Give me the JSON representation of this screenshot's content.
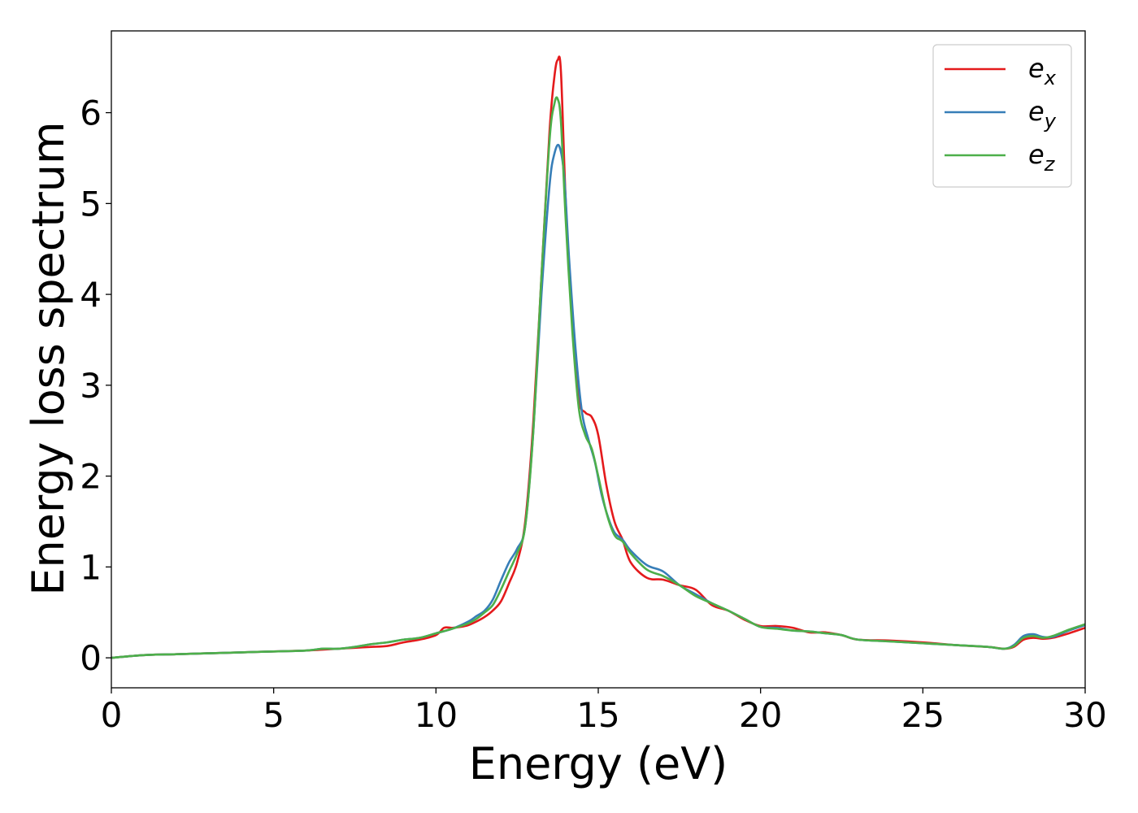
{
  "chart_data": {
    "type": "line",
    "title": "",
    "xlabel": "Energy (eV)",
    "ylabel": "Energy loss spectrum",
    "xlim": [
      0,
      30
    ],
    "ylim": [
      -0.33,
      6.9
    ],
    "xticks": [
      0,
      5,
      10,
      15,
      20,
      25,
      30
    ],
    "yticks": [
      0,
      1,
      2,
      3,
      4,
      5,
      6
    ],
    "grid": false,
    "legend_position": "top-right",
    "series": [
      {
        "name": "e",
        "subscript": "x",
        "color": "#e41a1c",
        "x": [
          0,
          1,
          2,
          3,
          4,
          5,
          6,
          6.5,
          7,
          7.5,
          8,
          8.5,
          9,
          9.5,
          10,
          10.25,
          10.5,
          10.75,
          11,
          11.25,
          11.5,
          11.75,
          12,
          12.25,
          12.5,
          12.75,
          13,
          13.25,
          13.5,
          13.65,
          13.75,
          13.85,
          14,
          14.2,
          14.4,
          14.6,
          14.8,
          15,
          15.25,
          15.5,
          15.75,
          16,
          16.5,
          17,
          17.5,
          18,
          18.5,
          19,
          19.5,
          20,
          20.5,
          21,
          21.5,
          22,
          22.5,
          23,
          24,
          25,
          26,
          27,
          27.5,
          27.8,
          28.1,
          28.4,
          28.7,
          29,
          29.5,
          30
        ],
        "y": [
          0,
          0.03,
          0.04,
          0.05,
          0.06,
          0.07,
          0.08,
          0.09,
          0.1,
          0.11,
          0.12,
          0.13,
          0.17,
          0.2,
          0.25,
          0.33,
          0.33,
          0.34,
          0.36,
          0.4,
          0.45,
          0.52,
          0.62,
          0.82,
          1.05,
          1.5,
          2.6,
          4.2,
          5.8,
          6.4,
          6.58,
          6.45,
          5.0,
          3.7,
          2.85,
          2.7,
          2.65,
          2.45,
          1.9,
          1.5,
          1.3,
          1.05,
          0.88,
          0.86,
          0.8,
          0.75,
          0.58,
          0.52,
          0.42,
          0.35,
          0.35,
          0.33,
          0.28,
          0.28,
          0.25,
          0.2,
          0.19,
          0.17,
          0.14,
          0.12,
          0.1,
          0.12,
          0.2,
          0.22,
          0.21,
          0.22,
          0.27,
          0.33
        ]
      },
      {
        "name": "e",
        "subscript": "y",
        "color": "#377eb8",
        "x": [
          0,
          1,
          2,
          3,
          4,
          5,
          6,
          6.5,
          7,
          7.5,
          8,
          8.5,
          9,
          9.5,
          10,
          10.5,
          11,
          11.25,
          11.5,
          11.75,
          12,
          12.25,
          12.5,
          12.75,
          13,
          13.25,
          13.5,
          13.65,
          13.8,
          13.95,
          14.1,
          14.3,
          14.5,
          14.7,
          14.9,
          15.1,
          15.3,
          15.5,
          15.75,
          16,
          16.5,
          17,
          17.5,
          18,
          18.5,
          19,
          19.5,
          20,
          20.5,
          21,
          21.5,
          22,
          22.5,
          23,
          24,
          25,
          26,
          27,
          27.5,
          27.8,
          28.1,
          28.4,
          28.7,
          29,
          29.5,
          30
        ],
        "y": [
          0,
          0.03,
          0.04,
          0.05,
          0.06,
          0.07,
          0.08,
          0.1,
          0.1,
          0.12,
          0.15,
          0.17,
          0.2,
          0.22,
          0.27,
          0.32,
          0.4,
          0.46,
          0.52,
          0.64,
          0.85,
          1.05,
          1.2,
          1.45,
          2.5,
          4.0,
          5.2,
          5.55,
          5.63,
          5.3,
          4.4,
          3.4,
          2.7,
          2.4,
          2.15,
          1.8,
          1.55,
          1.38,
          1.3,
          1.18,
          1.02,
          0.95,
          0.8,
          0.7,
          0.6,
          0.52,
          0.43,
          0.34,
          0.33,
          0.3,
          0.29,
          0.27,
          0.25,
          0.2,
          0.18,
          0.16,
          0.14,
          0.12,
          0.1,
          0.14,
          0.24,
          0.26,
          0.23,
          0.23,
          0.3,
          0.36
        ]
      },
      {
        "name": "e",
        "subscript": "z",
        "color": "#4daf4a",
        "x": [
          0,
          1,
          2,
          3,
          4,
          5,
          6,
          6.5,
          7,
          7.5,
          8,
          8.5,
          9,
          9.5,
          10,
          10.5,
          11,
          11.25,
          11.5,
          11.75,
          12,
          12.25,
          12.5,
          12.75,
          13,
          13.25,
          13.5,
          13.65,
          13.75,
          13.85,
          14,
          14.2,
          14.4,
          14.6,
          14.8,
          15,
          15.25,
          15.5,
          15.75,
          16,
          16.5,
          17,
          17.5,
          18,
          18.5,
          19,
          19.5,
          20,
          20.5,
          21,
          21.5,
          22,
          22.5,
          23,
          24,
          25,
          26,
          27,
          27.5,
          27.8,
          28.1,
          28.4,
          28.7,
          29,
          29.5,
          30
        ],
        "y": [
          0,
          0.03,
          0.04,
          0.05,
          0.06,
          0.07,
          0.08,
          0.1,
          0.1,
          0.12,
          0.15,
          0.17,
          0.2,
          0.22,
          0.27,
          0.32,
          0.38,
          0.43,
          0.5,
          0.58,
          0.75,
          0.95,
          1.15,
          1.45,
          2.5,
          4.2,
          5.7,
          6.1,
          6.15,
          5.9,
          4.8,
          3.6,
          2.75,
          2.45,
          2.3,
          2.0,
          1.6,
          1.35,
          1.28,
          1.15,
          0.97,
          0.9,
          0.8,
          0.68,
          0.6,
          0.52,
          0.43,
          0.34,
          0.32,
          0.3,
          0.29,
          0.27,
          0.25,
          0.2,
          0.18,
          0.16,
          0.14,
          0.12,
          0.1,
          0.13,
          0.22,
          0.24,
          0.22,
          0.24,
          0.31,
          0.37
        ]
      }
    ]
  }
}
